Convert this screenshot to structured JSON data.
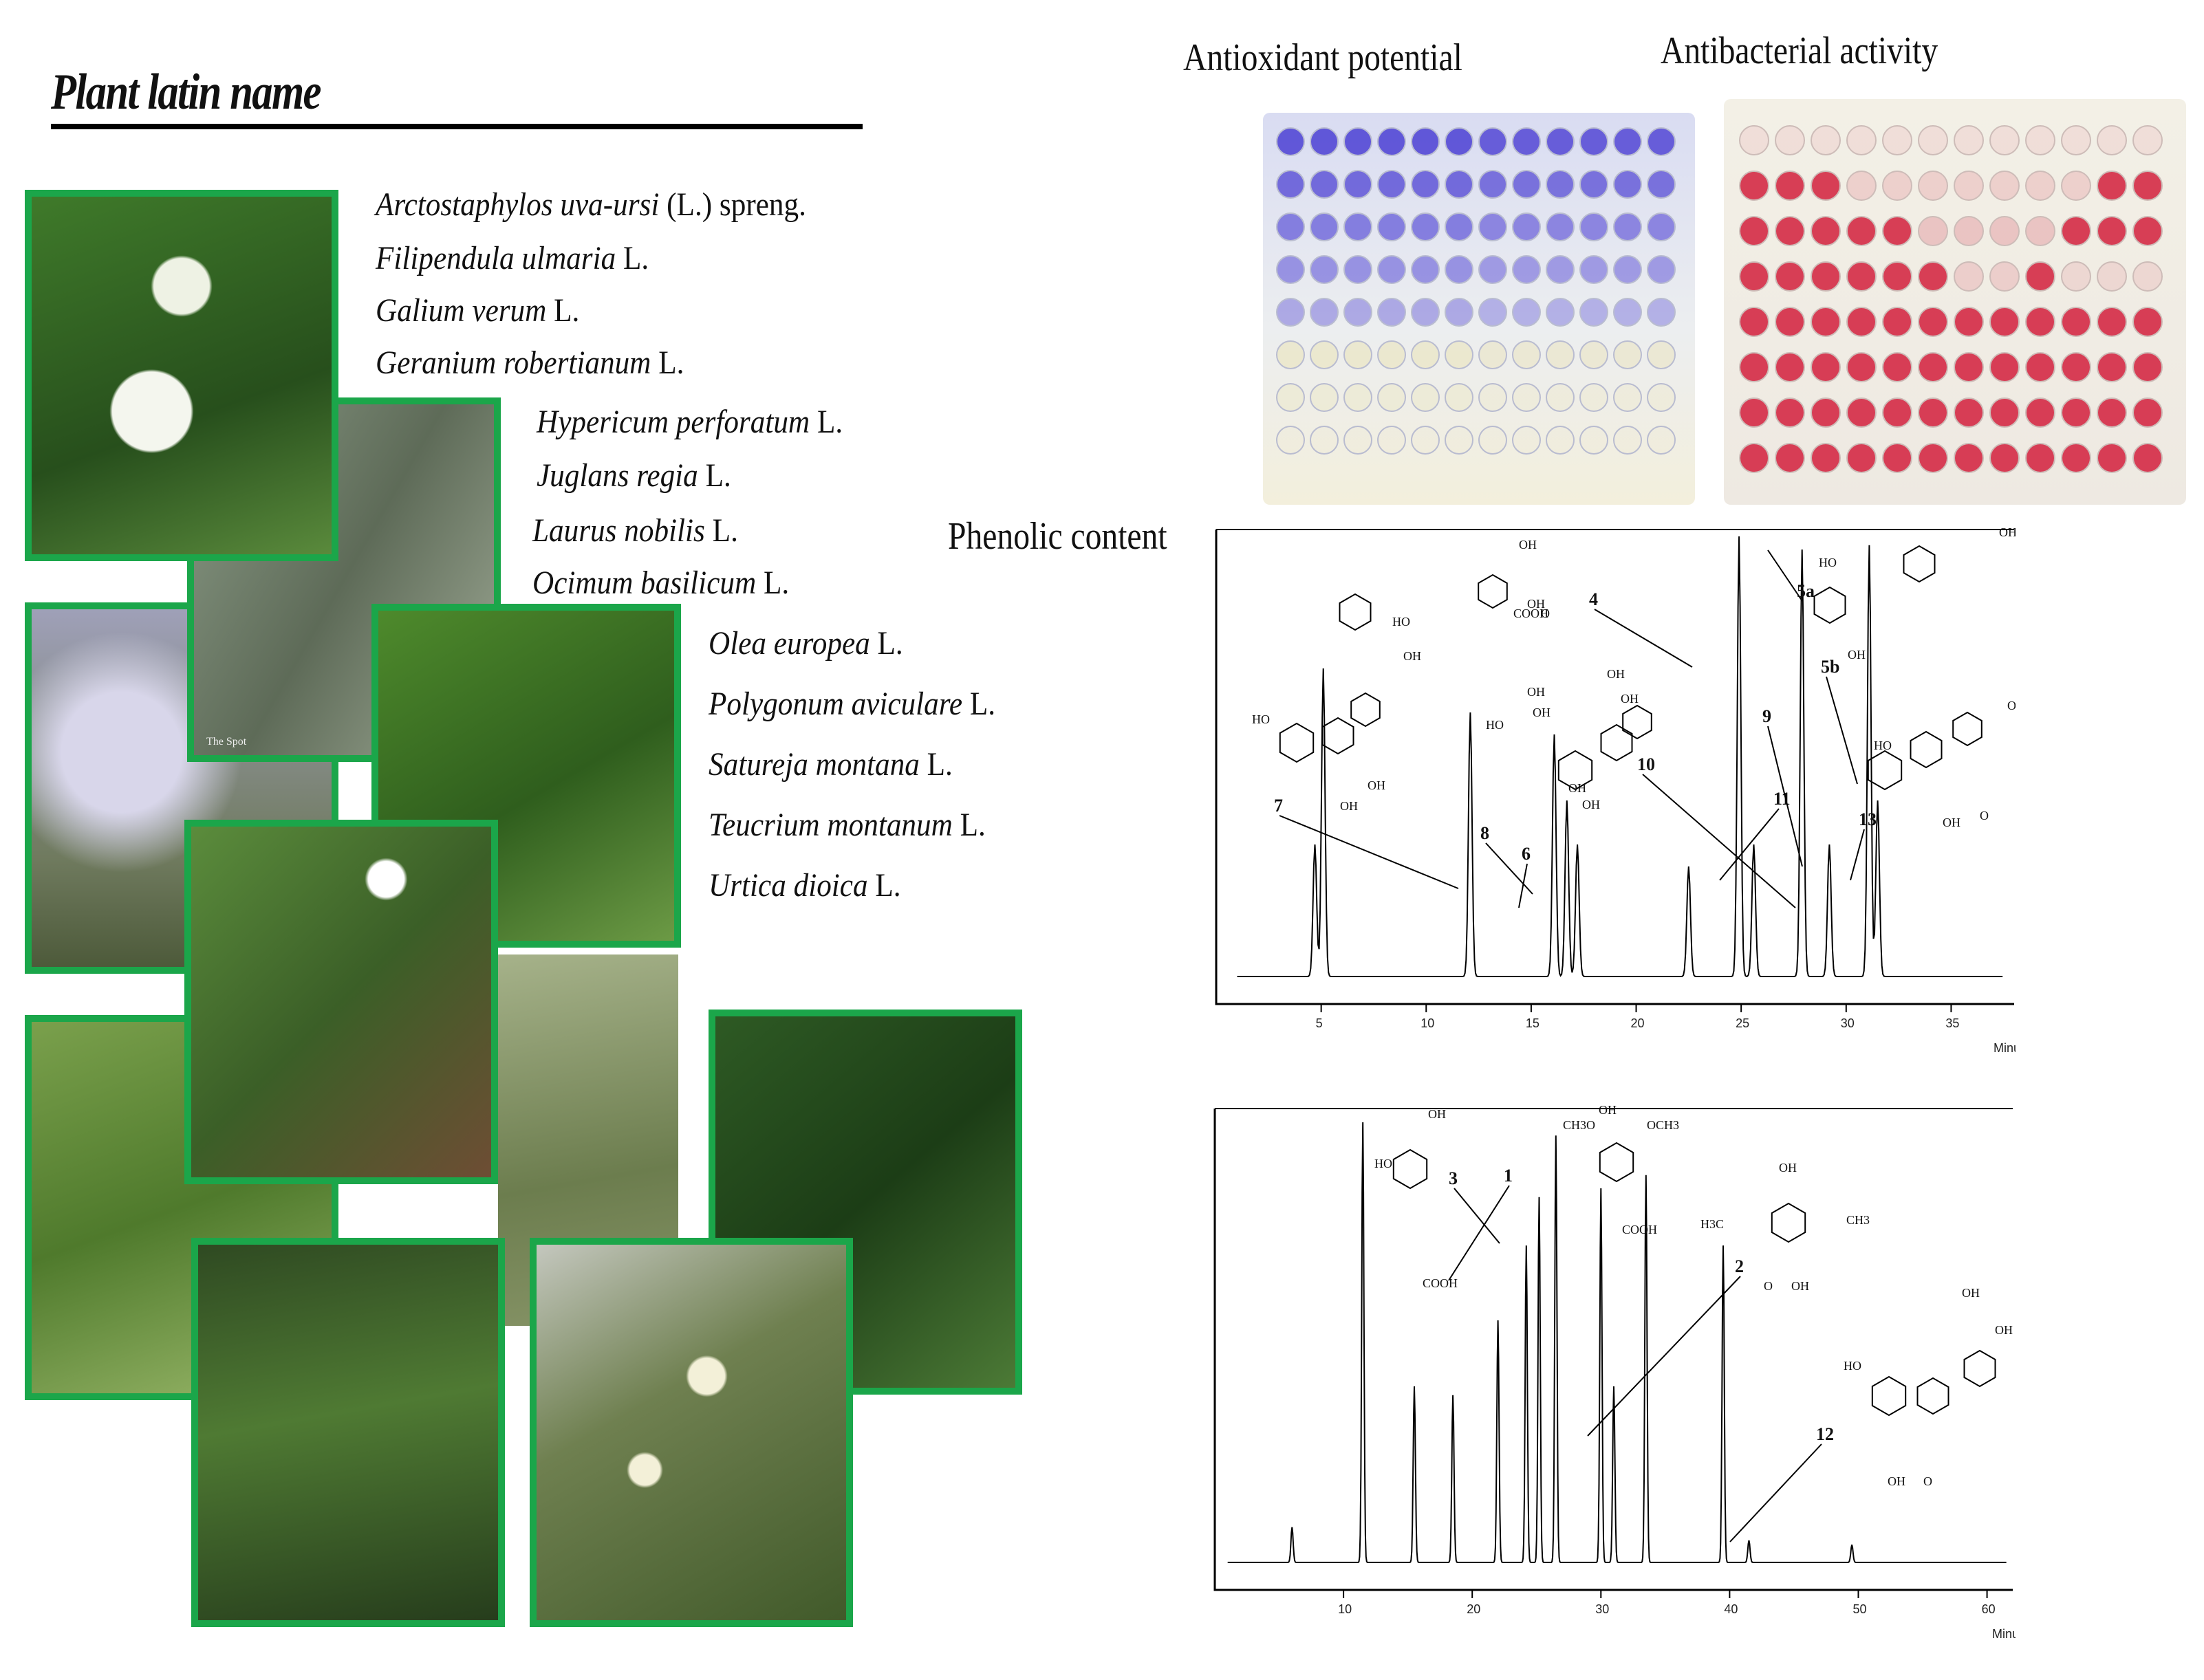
{
  "title": "Plant latin name",
  "species": [
    {
      "name": "Arctostaphylos uva-ursi",
      "author": "(L.) spreng."
    },
    {
      "name": "Filipendula ulmaria",
      "author": "L."
    },
    {
      "name": "Galium verum",
      "author": "L."
    },
    {
      "name": "Geranium robertianum",
      "author": "L."
    },
    {
      "name": "Hypericum perforatum",
      "author": "L."
    },
    {
      "name": "Juglans regia",
      "author": "L."
    },
    {
      "name": "Laurus nobilis",
      "author": "L."
    },
    {
      "name": "Ocimum basilicum",
      "author": "L."
    },
    {
      "name": "Olea europea",
      "author": "L."
    },
    {
      "name": "Polygonum aviculare",
      "author": "L."
    },
    {
      "name": "Satureja montana",
      "author": "L."
    },
    {
      "name": "Teucrium montanum",
      "author": "L."
    },
    {
      "name": "Urtica dioica",
      "author": "L."
    }
  ],
  "photo_watermark": "The Spot",
  "headings": {
    "antioxidant": "Antioxidant potential",
    "antibacterial": "Antibacterial activity",
    "phenolic": "Phenolic content"
  },
  "colors": {
    "frame": "#1ba64a",
    "antioxidant_well": "#5a4fd6",
    "antibacterial_well": "#d21f3c"
  },
  "chart_data": [
    {
      "type": "line",
      "title": "",
      "xlabel": "Minutes",
      "xlim": [
        0,
        38
      ],
      "xticks": [
        5,
        10,
        15,
        20,
        25,
        30,
        35
      ],
      "peak_labels": [
        "7",
        "8",
        "6",
        "10",
        "4",
        "11",
        "9",
        "5a",
        "5b",
        "13"
      ],
      "structure_labels": [
        "OH",
        "HO",
        "COOH",
        "O"
      ],
      "series": [
        {
          "peaks": [
            [
              4.7,
              30
            ],
            [
              5.1,
              70
            ],
            [
              12.1,
              60
            ],
            [
              16.1,
              55
            ],
            [
              16.7,
              40
            ],
            [
              17.2,
              30
            ],
            [
              22.5,
              25
            ],
            [
              24.9,
              100
            ],
            [
              25.6,
              30
            ],
            [
              27.9,
              97
            ],
            [
              29.2,
              30
            ],
            [
              31.1,
              98
            ],
            [
              31.5,
              40
            ]
          ]
        }
      ]
    },
    {
      "type": "line",
      "title": "",
      "xlabel": "Minutes",
      "xlim": [
        0,
        62
      ],
      "xticks": [
        10,
        20,
        30,
        40,
        50,
        60
      ],
      "peak_labels": [
        "3",
        "1",
        "2",
        "12"
      ],
      "structure_labels": [
        "OH",
        "HO",
        "COOH",
        "CH3O",
        "OCH3",
        "H3C",
        "CH3",
        "O"
      ],
      "series": [
        {
          "peaks": [
            [
              6,
              8
            ],
            [
              11.5,
              100
            ],
            [
              15.5,
              40
            ],
            [
              18.5,
              38
            ],
            [
              22,
              55
            ],
            [
              24.2,
              72
            ],
            [
              25.2,
              83
            ],
            [
              26.5,
              97
            ],
            [
              30,
              85
            ],
            [
              31,
              40
            ],
            [
              33.5,
              88
            ],
            [
              39.5,
              72
            ],
            [
              41.5,
              5
            ],
            [
              49.5,
              4
            ]
          ]
        }
      ]
    }
  ]
}
